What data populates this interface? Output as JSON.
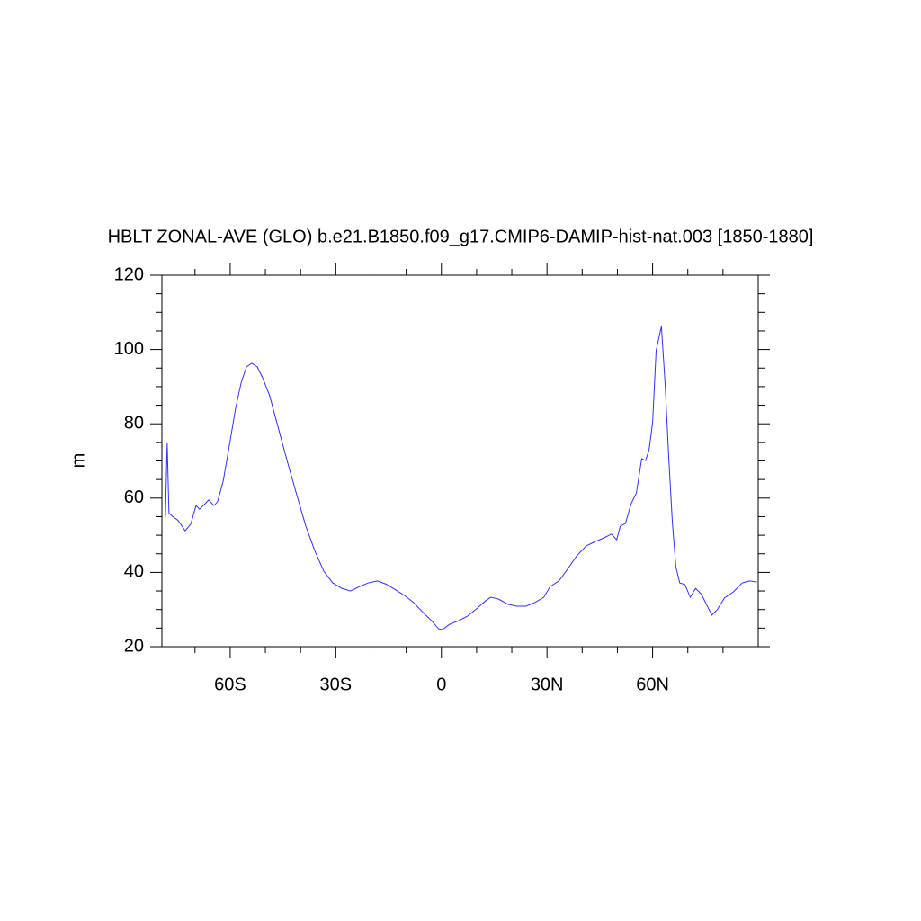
{
  "chart_data": {
    "type": "line",
    "title": "HBLT ZONAL-AVE (GLO) b.e21.B1850.f09_g17.CMIP6-DAMIP-hist-nat.003 [1850-1880]",
    "ylabel": "m",
    "xlim": [
      -79.4,
      90
    ],
    "ylim": [
      20,
      120
    ],
    "xticks": [
      {
        "value": -60,
        "label": "60S"
      },
      {
        "value": -30,
        "label": "30S"
      },
      0,
      {
        "value": 30,
        "label": "30N"
      },
      {
        "value": 60,
        "label": "60N"
      }
    ],
    "yticks": [
      20,
      40,
      60,
      80,
      100,
      120
    ],
    "xminorticks": [
      -70,
      -50,
      -40,
      -20,
      -10,
      10,
      20,
      40,
      50,
      70,
      80
    ],
    "yminorticks": [
      25,
      30,
      35,
      45,
      50,
      55,
      65,
      70,
      75,
      85,
      90,
      95,
      105,
      110,
      115
    ],
    "grid": false,
    "series": [
      {
        "color": "#3030ff",
        "x": [
          -78.4,
          -77.9,
          -77.4,
          -76.3,
          -74.8,
          -72.8,
          -71.2,
          -69.7,
          -68.7,
          -67.1,
          -66.1,
          -64.6,
          -63.6,
          -62.0,
          -60.0,
          -58.5,
          -56.9,
          -55.4,
          -53.9,
          -52.3,
          -50.8,
          -48.8,
          -46.2,
          -43.7,
          -41.1,
          -38.5,
          -36.0,
          -33.4,
          -30.9,
          -28.3,
          -25.8,
          -23.2,
          -20.7,
          -18.1,
          -15.6,
          -13.0,
          -10.5,
          -7.9,
          -5.4,
          -2.8,
          -0.8,
          0.3,
          2.3,
          4.9,
          7.4,
          10.0,
          12.5,
          14.0,
          16.3,
          18.9,
          21.4,
          24.0,
          26.6,
          29.1,
          30.9,
          33.4,
          36.0,
          38.5,
          41.1,
          43.7,
          46.2,
          48.3,
          49.8,
          50.8,
          52.3,
          53.9,
          55.4,
          56.9,
          58.0,
          59.0,
          60.0,
          61.0,
          62.5,
          63.6,
          64.6,
          65.6,
          66.6,
          67.7,
          69.2,
          70.7,
          72.2,
          73.8,
          75.3,
          76.8,
          78.4,
          80.4,
          83.0,
          85.5,
          87.6,
          89.6
        ],
        "values": [
          54.9,
          75.0,
          56.0,
          55.0,
          54.0,
          51.2,
          53.0,
          58.0,
          57.0,
          58.5,
          59.5,
          58.0,
          59.0,
          64.5,
          75.5,
          84.0,
          91.0,
          95.3,
          96.3,
          95.3,
          92.4,
          87.6,
          78.4,
          69.6,
          60.9,
          52.4,
          45.9,
          40.3,
          37.2,
          35.7,
          35.0,
          36.2,
          37.2,
          37.7,
          36.8,
          35.3,
          33.8,
          31.9,
          29.4,
          27.0,
          24.8,
          24.6,
          26.0,
          27.0,
          28.2,
          30.2,
          32.3,
          33.3,
          32.8,
          31.4,
          30.9,
          30.9,
          31.9,
          33.3,
          36.2,
          37.7,
          41.1,
          44.5,
          47.1,
          48.3,
          49.3,
          50.3,
          48.8,
          52.4,
          53.2,
          58.5,
          61.4,
          70.6,
          70.1,
          73.0,
          80.3,
          99.7,
          106.2,
          90.0,
          70.6,
          53.7,
          41.5,
          37.2,
          36.7,
          33.3,
          35.7,
          34.2,
          31.4,
          28.5,
          30.0,
          33.1,
          34.8,
          37.2,
          37.7,
          37.4
        ]
      }
    ]
  }
}
